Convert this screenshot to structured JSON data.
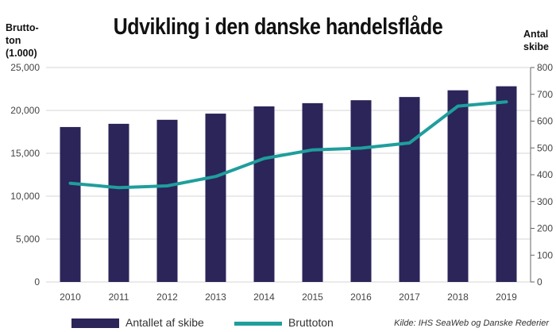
{
  "chart_data": {
    "type": "bar",
    "title": "Udvikling i den danske handelsflåde",
    "ylabel_left": "Brutto-ton (1.000)",
    "ylabel_left_lines": [
      "Brutto-",
      "ton",
      "(1.000)"
    ],
    "ylabel_right": "Antal skibe",
    "ylabel_right_lines": [
      "Antal",
      "skibe"
    ],
    "categories": [
      "2010",
      "2011",
      "2012",
      "2013",
      "2014",
      "2015",
      "2016",
      "2017",
      "2018",
      "2019"
    ],
    "left_axis": {
      "ylim": [
        0,
        25000
      ],
      "ticks": [
        "0",
        "5,000",
        "10,000",
        "15,000",
        "20,000",
        "25,000"
      ]
    },
    "right_axis": {
      "ylim": [
        0,
        800
      ],
      "ticks": [
        "0",
        "100",
        "200",
        "300",
        "400",
        "500",
        "600",
        "700",
        "800"
      ]
    },
    "grid": true,
    "legend_position": "bottom-left",
    "series": [
      {
        "name": "Antallet af skibe",
        "type": "bar",
        "axis": "right",
        "color": "#2b2559",
        "values": [
          578,
          590,
          605,
          628,
          655,
          667,
          678,
          690,
          715,
          730
        ]
      },
      {
        "name": "Bruttoton",
        "type": "line",
        "axis": "left",
        "color": "#1f9e9c",
        "values": [
          11500,
          11000,
          11200,
          12300,
          14400,
          15400,
          15600,
          16200,
          20500,
          21000
        ]
      }
    ],
    "source": "Kilde: IHS SeaWeb og Danske Rederier"
  }
}
